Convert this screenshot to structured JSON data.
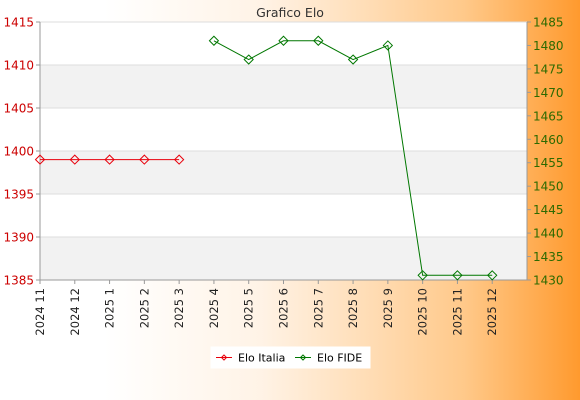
{
  "chart_data": {
    "type": "line",
    "title": "Grafico Elo",
    "categories": [
      "2024 11",
      "2024 12",
      "2025 1",
      "2025 2",
      "2025 3",
      "2025 4",
      "2025 5",
      "2025 6",
      "2025 7",
      "2025 8",
      "2025 9",
      "2025 10",
      "2025 11",
      "2025 12"
    ],
    "series": [
      {
        "name": "Elo Italia",
        "axis": "left",
        "color": "#e8000b",
        "values": [
          1399,
          1399,
          1399,
          1399,
          1399,
          null,
          null,
          null,
          null,
          null,
          null,
          null,
          null,
          null
        ]
      },
      {
        "name": "Elo FIDE",
        "axis": "right",
        "color": "#007700",
        "values": [
          null,
          null,
          null,
          null,
          null,
          1481,
          1477,
          1481,
          1481,
          1477,
          1480,
          1431,
          1431,
          1431
        ]
      }
    ],
    "y_left": {
      "min": 1385,
      "max": 1415,
      "ticks": [
        1385,
        1390,
        1395,
        1400,
        1405,
        1410,
        1415
      ],
      "color": "#cc0000"
    },
    "y_right": {
      "min": 1430,
      "max": 1485,
      "ticks": [
        1430,
        1435,
        1440,
        1445,
        1450,
        1455,
        1460,
        1465,
        1470,
        1475,
        1480,
        1485
      ],
      "color": "#2d6a00"
    },
    "grid": true,
    "legend": {
      "position": "bottom-center",
      "items": [
        "Elo Italia",
        "Elo FIDE"
      ]
    }
  }
}
